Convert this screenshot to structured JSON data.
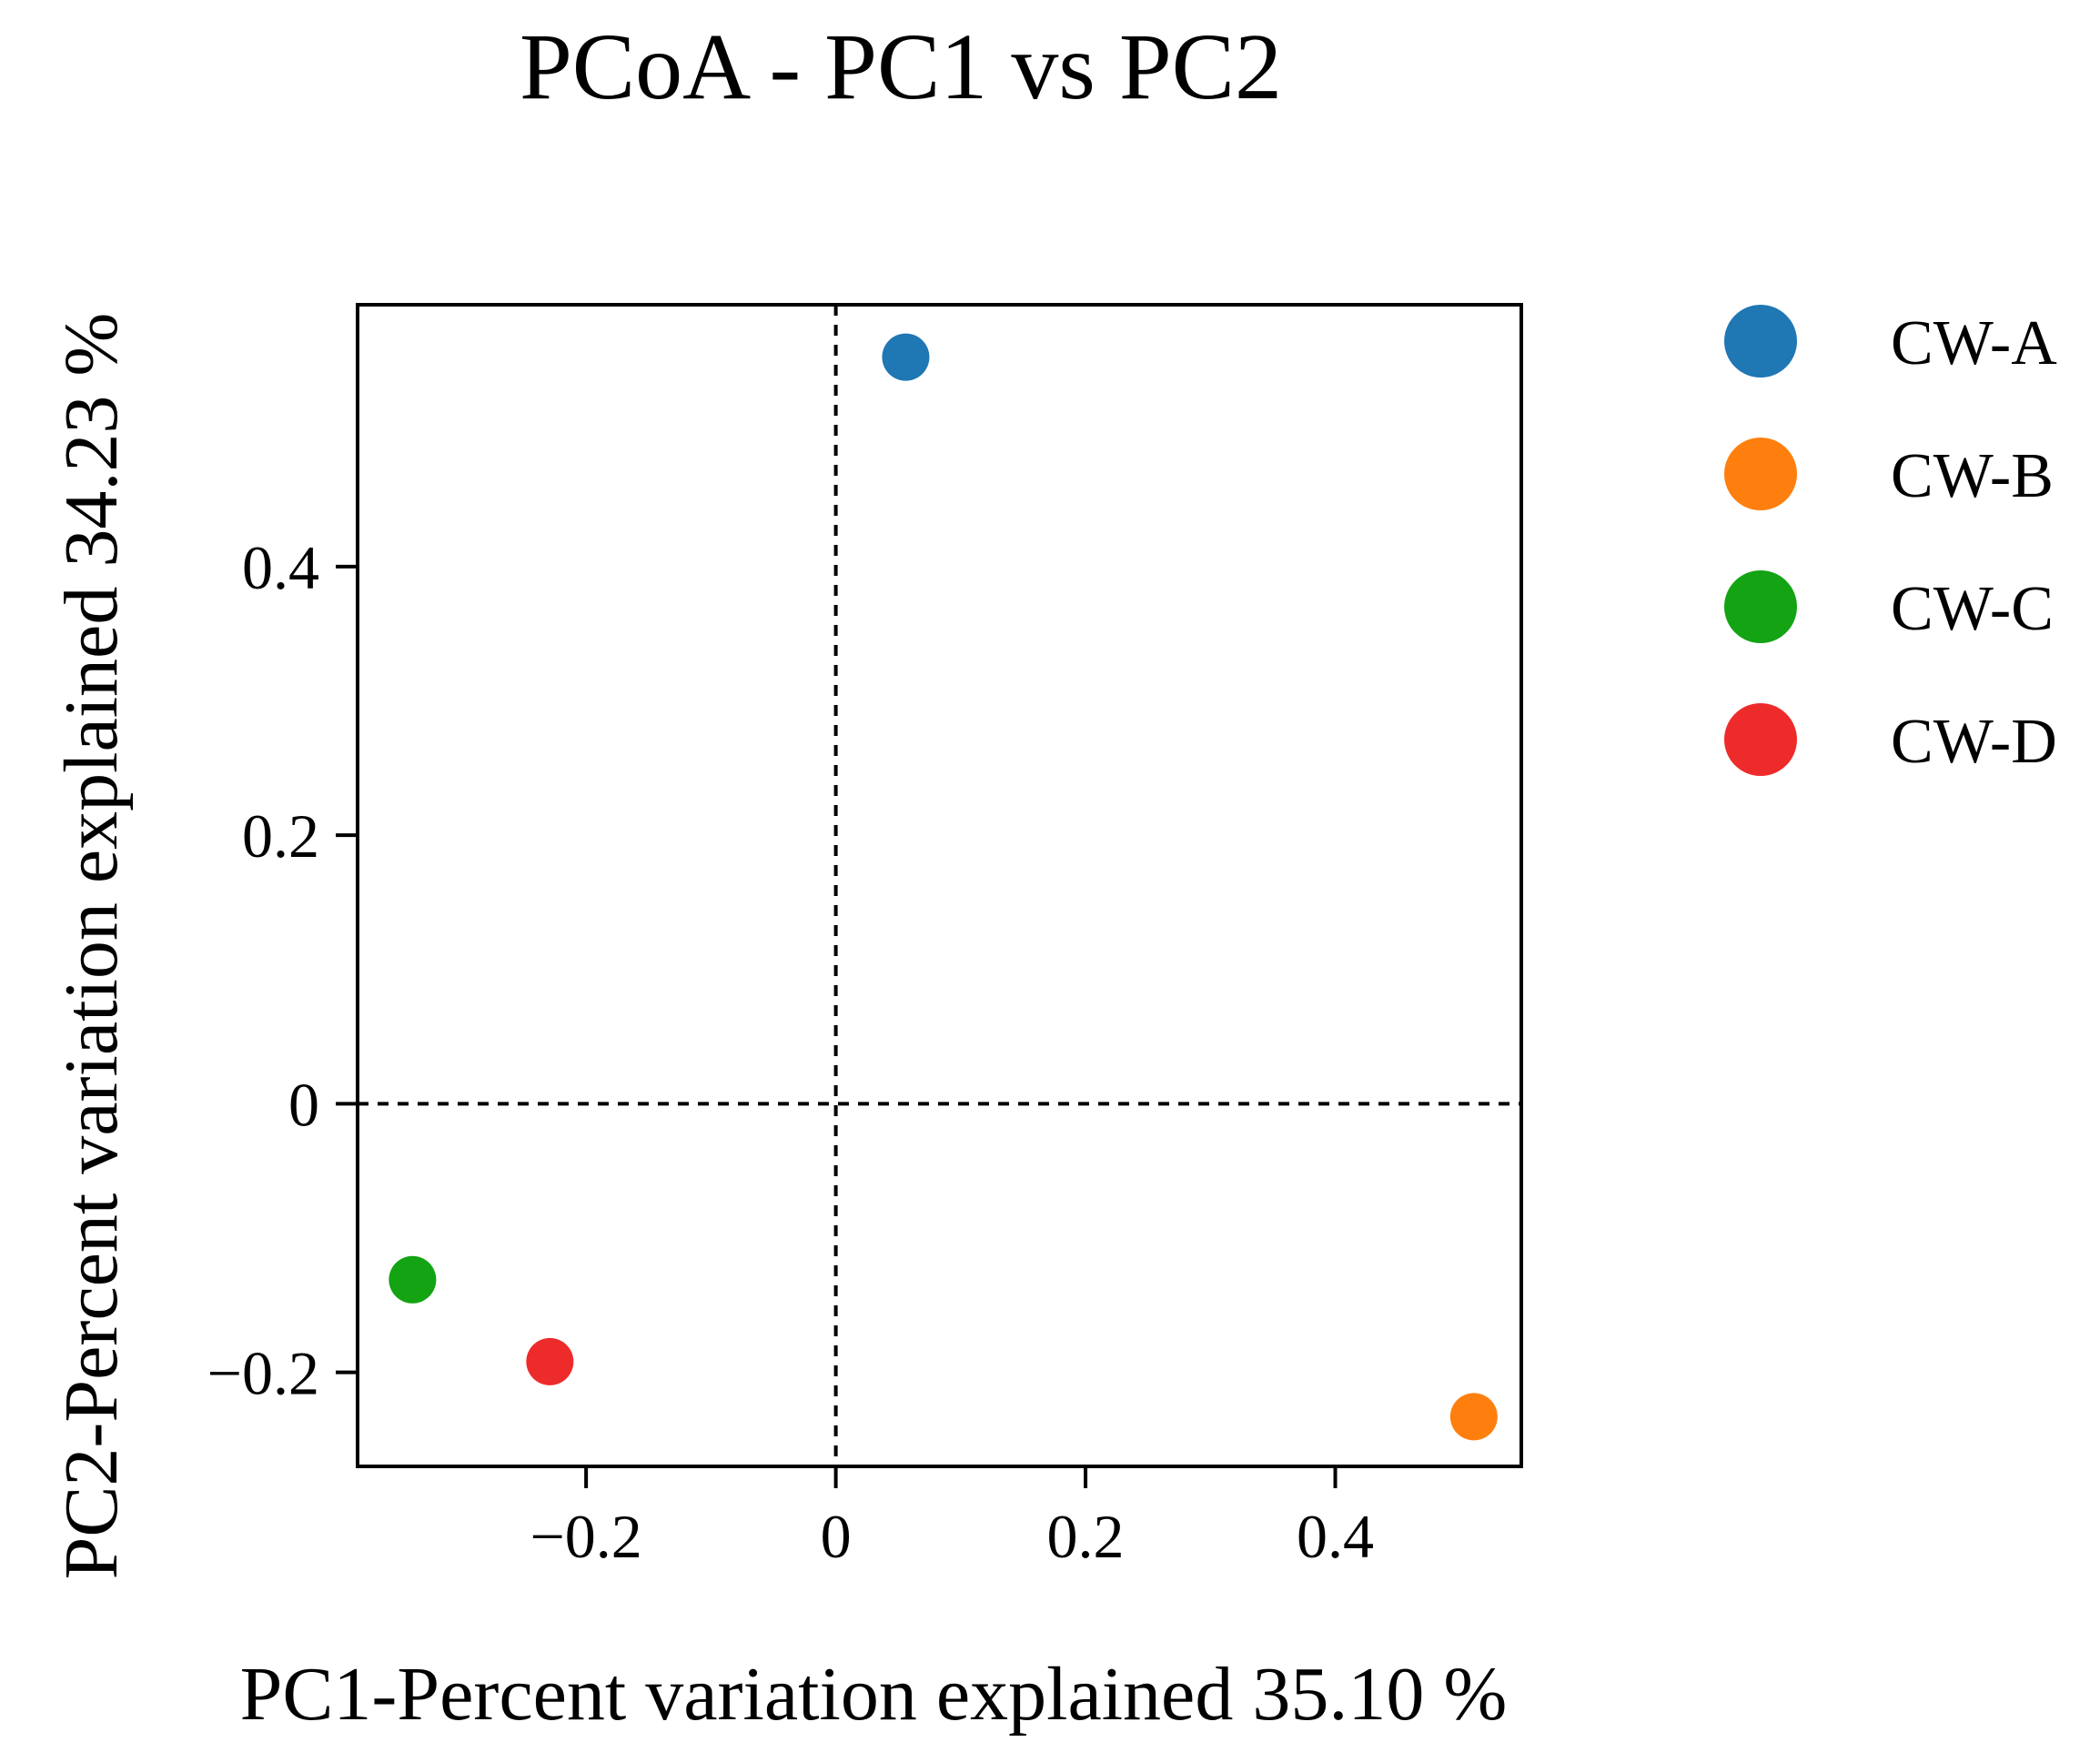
{
  "chart_data": {
    "type": "scatter",
    "title": "PCoA - PC1 vs PC2",
    "xlabel": "PC1-Percent variation explained 35.10 %",
    "ylabel": "PC2-Percent variation explained 34.23 %",
    "xlim": [
      -0.383,
      0.549
    ],
    "ylim": [
      -0.27,
      0.595
    ],
    "xticks": [
      {
        "value": -0.2,
        "label": "−0.2"
      },
      {
        "value": 0,
        "label": "0"
      },
      {
        "value": 0.2,
        "label": "0.2"
      },
      {
        "value": 0.4,
        "label": "0.4"
      }
    ],
    "yticks": [
      {
        "value": -0.2,
        "label": "−0.2"
      },
      {
        "value": 0,
        "label": "0"
      },
      {
        "value": 0.2,
        "label": "0.2"
      },
      {
        "value": 0.4,
        "label": "0.4"
      }
    ],
    "reference_lines": {
      "x": 0,
      "y": 0,
      "style": "dashed"
    },
    "grid": false,
    "legend_position": "right",
    "series": [
      {
        "name": "CW-A",
        "color": "#1F77B4",
        "x": 0.056,
        "y": 0.556
      },
      {
        "name": "CW-B",
        "color": "#FF7F0E",
        "x": 0.511,
        "y": -0.233
      },
      {
        "name": "CW-C",
        "color": "#13A313",
        "x": -0.339,
        "y": -0.131
      },
      {
        "name": "CW-D",
        "color": "#EE2B2B",
        "x": -0.229,
        "y": -0.192
      }
    ]
  }
}
